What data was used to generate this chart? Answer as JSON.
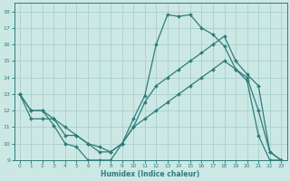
{
  "xlabel": "Humidex (Indice chaleur)",
  "background_color": "#cce8e5",
  "line_color": "#2e7d7a",
  "grid_color": "#aacfcc",
  "xlim": [
    -0.5,
    23.5
  ],
  "ylim": [
    9,
    18.5
  ],
  "xticks": [
    0,
    1,
    2,
    3,
    4,
    5,
    6,
    7,
    8,
    9,
    10,
    11,
    12,
    13,
    14,
    15,
    16,
    17,
    18,
    19,
    20,
    21,
    22,
    23
  ],
  "yticks": [
    9,
    10,
    11,
    12,
    13,
    14,
    15,
    16,
    17,
    18
  ],
  "line1_x": [
    0,
    1,
    2,
    3,
    4,
    5,
    6,
    7,
    8,
    9,
    10,
    11,
    12,
    13,
    14,
    15,
    16,
    17,
    18,
    19,
    20,
    21,
    22,
    23
  ],
  "line1_y": [
    13.0,
    12.0,
    12.0,
    11.1,
    10.0,
    9.8,
    9.0,
    9.0,
    9.0,
    10.0,
    11.5,
    12.9,
    16.0,
    17.8,
    17.7,
    17.8,
    17.0,
    16.6,
    15.9,
    14.5,
    13.8,
    10.5,
    9.0,
    9.0
  ],
  "line2_x": [
    0,
    1,
    2,
    3,
    4,
    5,
    6,
    7,
    8,
    9,
    10,
    11,
    12,
    13,
    14,
    15,
    16,
    17,
    18,
    19,
    20,
    21,
    22,
    23
  ],
  "line2_y": [
    13.0,
    12.0,
    12.0,
    11.5,
    11.0,
    10.5,
    10.0,
    9.8,
    9.5,
    10.0,
    11.0,
    12.5,
    13.5,
    14.0,
    14.5,
    15.0,
    15.5,
    16.0,
    16.5,
    15.0,
    14.2,
    13.5,
    9.5,
    9.0
  ],
  "line3_x": [
    0,
    1,
    2,
    3,
    4,
    5,
    6,
    7,
    8,
    9,
    10,
    11,
    12,
    13,
    14,
    15,
    16,
    17,
    18,
    19,
    20,
    21,
    22,
    23
  ],
  "line3_y": [
    13.0,
    11.5,
    11.5,
    11.5,
    10.5,
    10.5,
    10.0,
    9.5,
    9.5,
    10.0,
    11.0,
    11.5,
    12.0,
    12.5,
    13.0,
    13.5,
    14.0,
    14.5,
    15.0,
    14.5,
    14.0,
    12.0,
    9.5,
    9.0
  ]
}
